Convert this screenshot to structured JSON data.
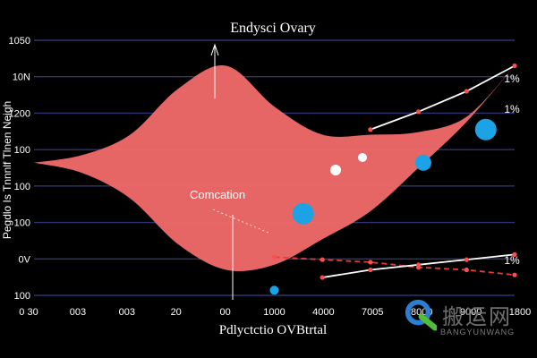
{
  "chart_data": {
    "type": "area",
    "title": "Endysci Ovary",
    "xlabel": "Pdlyctctio OVBtrtal",
    "ylabel": "Pegdlo Is Tnnnlf Tlnen Neigh",
    "x_tick_labels": [
      "0 30",
      "003",
      "003",
      "20",
      "00",
      "1000",
      "4000",
      "7005",
      "8000",
      "9000",
      "1800"
    ],
    "y_tick_labels": [
      "1050",
      "10N",
      "1200",
      "100",
      "100",
      "100",
      "0V",
      "100"
    ],
    "right_labels": [
      "1%",
      "1%",
      "1%"
    ],
    "annotation": "Comcation",
    "grid": true,
    "x": [
      0,
      1,
      2,
      3,
      4,
      5,
      6,
      7,
      8,
      9,
      10
    ],
    "ylim": [
      0,
      100
    ],
    "series": [
      {
        "kind": "area",
        "upper": [
          52,
          55,
          63,
          81,
          90,
          74,
          63,
          63,
          64,
          70,
          90
        ],
        "lower": [
          52,
          48,
          38,
          20,
          10,
          12,
          22,
          33,
          50,
          68,
          90
        ]
      },
      {
        "kind": "line",
        "values": [
          null,
          null,
          null,
          null,
          null,
          null,
          null,
          65,
          72,
          80,
          90
        ]
      },
      {
        "kind": "line",
        "values": [
          null,
          null,
          null,
          null,
          null,
          15,
          14,
          13,
          11,
          10,
          8
        ]
      },
      {
        "kind": "line",
        "values": [
          null,
          null,
          null,
          null,
          null,
          null,
          7,
          10,
          12,
          14,
          16
        ]
      }
    ],
    "colors": {
      "area": "#f26a6a",
      "line": "#ffffff",
      "dash": "#e53b3b",
      "marker": "#1ca3e6",
      "grid": "#2f3470",
      "bg": "#000000"
    }
  },
  "watermark": {
    "cn": "搬运网",
    "en": "BANGYUNWANG"
  }
}
